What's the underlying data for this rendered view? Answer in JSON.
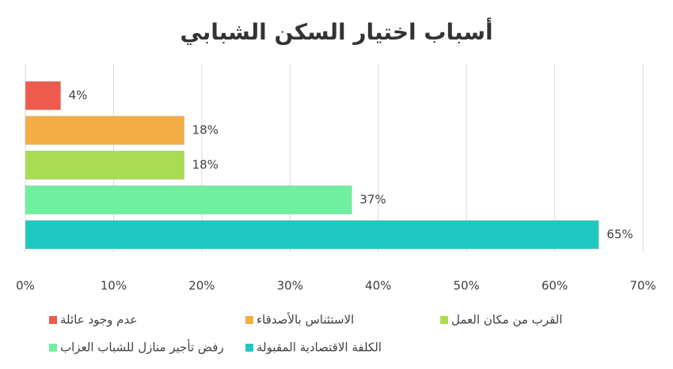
{
  "chart_data": {
    "type": "bar",
    "orientation": "horizontal",
    "title": "أسباب اختيار السكن الشبابي",
    "series": [
      {
        "name": "عدم وجود عائلة",
        "color": "#ee5a4c",
        "values": [
          4
        ],
        "value_labels": [
          "4%"
        ]
      },
      {
        "name": "الاستئناس بالأصدقاء",
        "color": "#f4ad45",
        "values": [
          18
        ],
        "value_labels": [
          "18%"
        ]
      },
      {
        "name": "القرب من مكان العمل",
        "color": "#a9dc52",
        "values": [
          18
        ],
        "value_labels": [
          "18%"
        ]
      },
      {
        "name": "رفض تأجير منازل للشباب العزاب",
        "color": "#6ef0a0",
        "values": [
          37
        ],
        "value_labels": [
          "37%"
        ]
      },
      {
        "name": "الكلفة الاقتصادية المقبولة",
        "color": "#1ec8c0",
        "values": [
          65
        ],
        "value_labels": [
          "65%"
        ]
      }
    ],
    "xlim": [
      0,
      70
    ],
    "xticks": [
      {
        "value": 0,
        "label": "0%"
      },
      {
        "value": 10,
        "label": "10%"
      },
      {
        "value": 20,
        "label": "20%"
      },
      {
        "value": 30,
        "label": "30%"
      },
      {
        "value": 40,
        "label": "40%"
      },
      {
        "value": 50,
        "label": "50%"
      },
      {
        "value": 60,
        "label": "60%"
      },
      {
        "value": 70,
        "label": "70%"
      }
    ],
    "grid": true,
    "legend": "bottom"
  }
}
